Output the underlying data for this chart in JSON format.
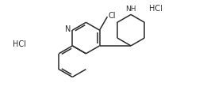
{
  "bg_color": "#ffffff",
  "line_color": "#2a2a2a",
  "text_color": "#2a2a2a",
  "lw": 1.1,
  "figsize": [
    2.8,
    1.29
  ],
  "dpi": 100,
  "hcl_left": "HCl",
  "hcl_right": "HCl",
  "label_cl": "Cl",
  "label_n_quinoline": "N",
  "label_nh": "NH",
  "xlim": [
    0,
    10
  ],
  "ylim": [
    0,
    4.6
  ],
  "font_size": 6.5
}
